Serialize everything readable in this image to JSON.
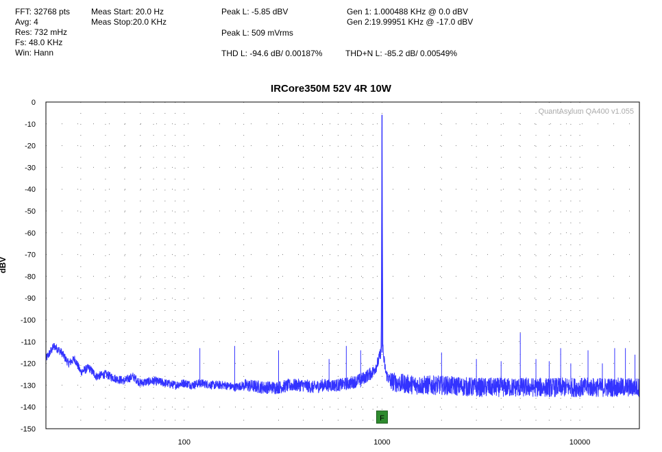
{
  "header": {
    "col1": [
      "FFT: 32768 pts",
      "Avg: 4",
      "Res: 732 mHz",
      "Fs: 48.0 KHz",
      "Win: Hann"
    ],
    "col2": [
      "Meas Start: 20.0 Hz",
      "Meas Stop:20.0 KHz"
    ],
    "peak_l_dbv": "Peak L: -5.85 dBV",
    "peak_l_vrms": "Peak L: 509 mVrms",
    "thd_l": "THD L: -94.6 dB/ 0.00187%",
    "gen1": "Gen 1: 1.000488 KHz @ 0.0  dBV",
    "gen2": "Gen 2:19.99951 KHz @ -17.0  dBV",
    "thdn_l": "THD+N L: -85.2 dB/ 0.00549%"
  },
  "chart_data": {
    "type": "line",
    "title": "IRCore350M 52V 4R 10W",
    "ylabel": "dBV",
    "xlabel": "",
    "x_scale": "log",
    "xlim": [
      20,
      20000
    ],
    "ylim": [
      -150,
      0
    ],
    "y_ticks": [
      0,
      -10,
      -20,
      -30,
      -40,
      -50,
      -60,
      -70,
      -80,
      -90,
      -100,
      -110,
      -120,
      -130,
      -140,
      -150
    ],
    "x_tick_labels": [
      "100",
      "1000",
      "10000"
    ],
    "x_tick_values": [
      100,
      1000,
      10000
    ],
    "grid": true,
    "watermark": "QuantAsylum QA400 v1.055",
    "marker_label": "F",
    "marker_freq": 1000,
    "series": [
      {
        "color": "#3333ff",
        "x": [
          20,
          22,
          24,
          26,
          28,
          30,
          33,
          36,
          40,
          45,
          50,
          55,
          60,
          70,
          80,
          90,
          100,
          110,
          120,
          140,
          160,
          180,
          200,
          250,
          300,
          350,
          400,
          450,
          500,
          600,
          700,
          800,
          900,
          950,
          980,
          990,
          995,
          1000,
          1005,
          1010,
          1020,
          1050,
          1100,
          1200,
          1500,
          2000,
          3000,
          5000,
          7000,
          10000,
          15000,
          20000
        ],
        "y": [
          -118,
          -112,
          -115,
          -120,
          -118,
          -124,
          -122,
          -126,
          -125,
          -127,
          -128,
          -126,
          -129,
          -128,
          -129,
          -130,
          -129,
          -130,
          -129,
          -130,
          -130,
          -131,
          -130,
          -131,
          -131,
          -130,
          -130,
          -131,
          -130,
          -130,
          -129,
          -127,
          -124,
          -120,
          -116,
          -112,
          -60,
          -5.85,
          -60,
          -112,
          -118,
          -125,
          -128,
          -129,
          -130,
          -130,
          -131,
          -131,
          -131,
          -131,
          -131,
          -131
        ]
      }
    ],
    "spurs": [
      {
        "x": 120,
        "y": -113
      },
      {
        "x": 180,
        "y": -112
      },
      {
        "x": 300,
        "y": -114
      },
      {
        "x": 540,
        "y": -118
      },
      {
        "x": 660,
        "y": -112
      },
      {
        "x": 780,
        "y": -114
      },
      {
        "x": 2000,
        "y": -115
      },
      {
        "x": 3000,
        "y": -118
      },
      {
        "x": 4000,
        "y": -119
      },
      {
        "x": 5000,
        "y": -106
      },
      {
        "x": 6000,
        "y": -118
      },
      {
        "x": 7000,
        "y": -119
      },
      {
        "x": 8000,
        "y": -113
      },
      {
        "x": 9000,
        "y": -120
      },
      {
        "x": 11000,
        "y": -114
      },
      {
        "x": 13000,
        "y": -120
      },
      {
        "x": 15000,
        "y": -113
      },
      {
        "x": 17000,
        "y": -113
      },
      {
        "x": 19000,
        "y": -116
      }
    ]
  }
}
